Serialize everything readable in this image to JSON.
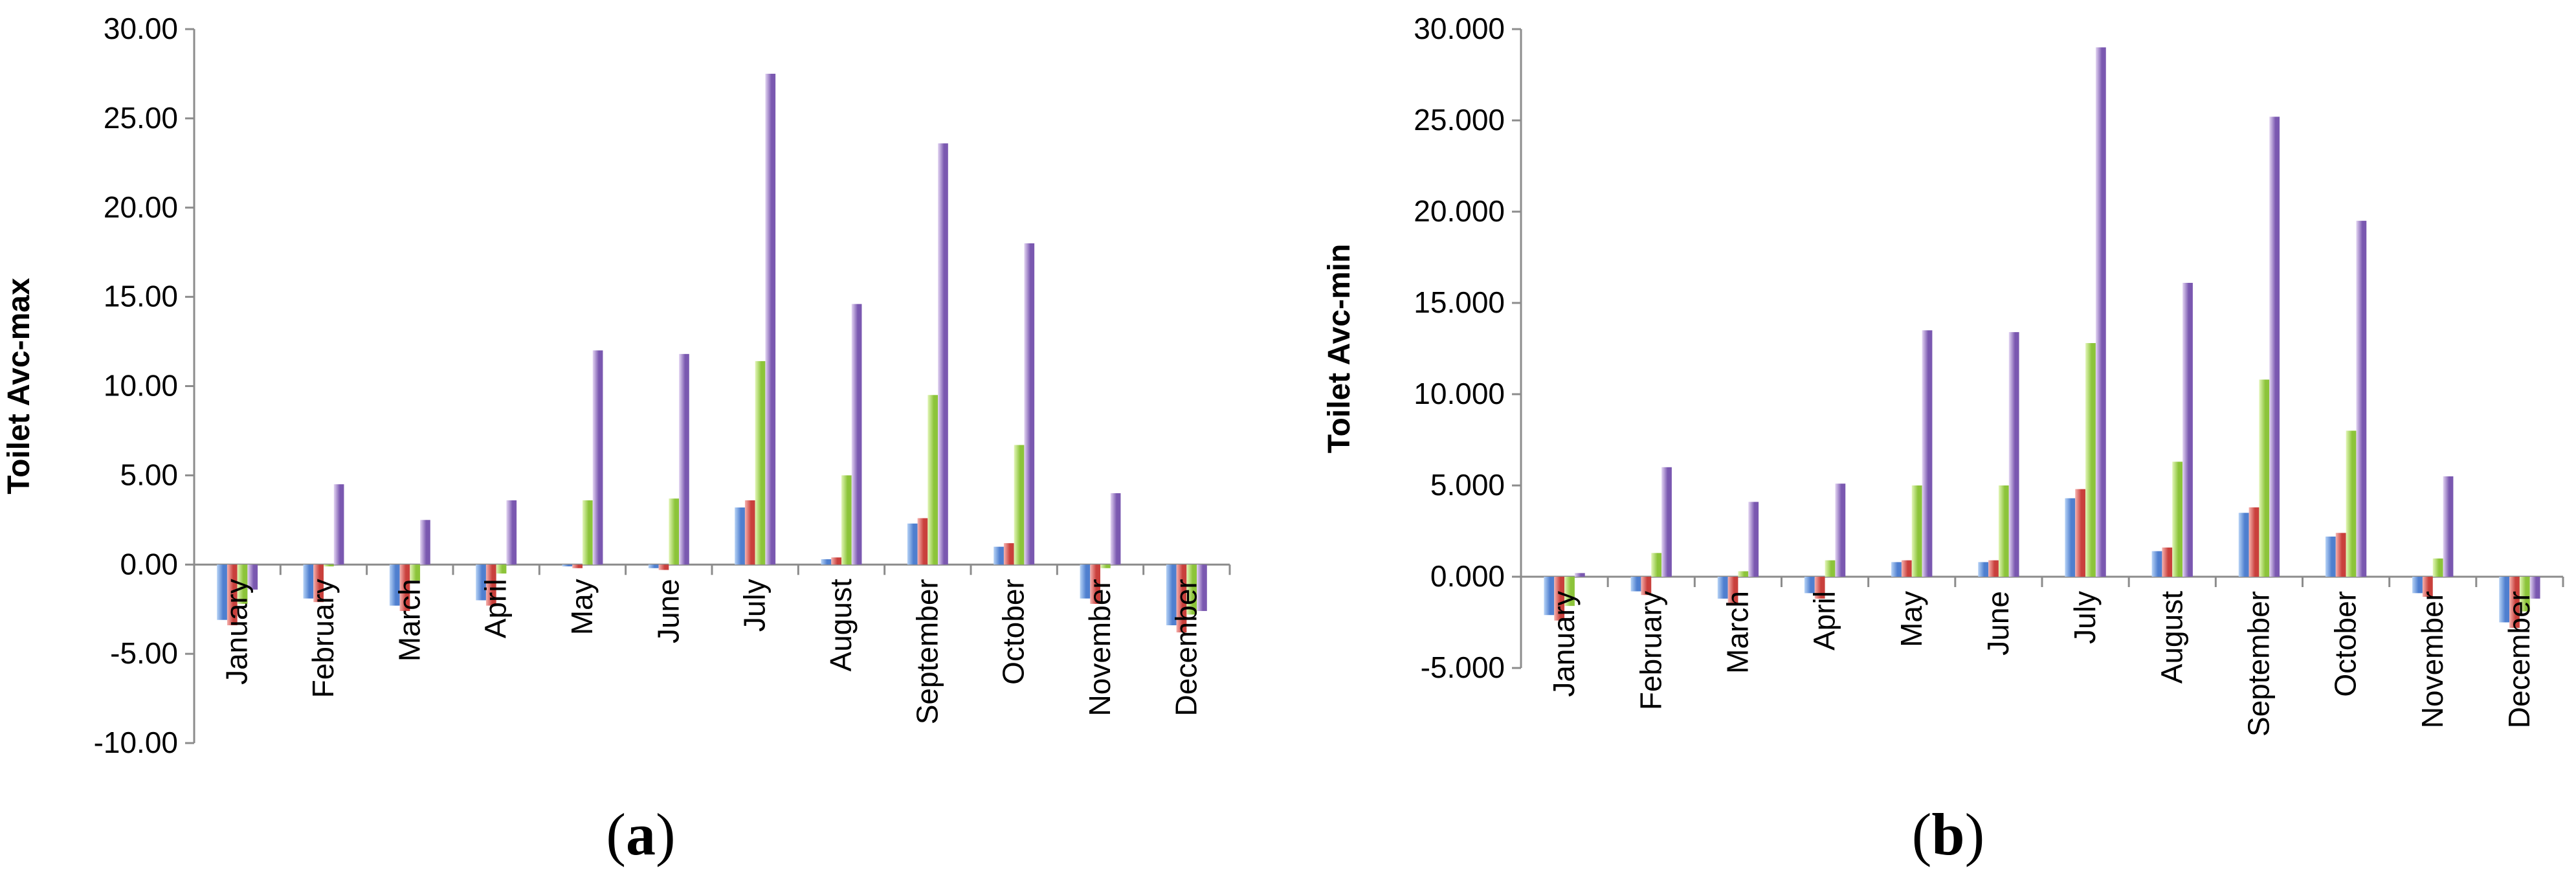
{
  "panels": [
    {
      "label": "(a)",
      "label_parts": [
        "(",
        "a",
        ")"
      ]
    },
    {
      "label": "(b)",
      "label_parts": [
        "(",
        "b",
        ")"
      ]
    }
  ],
  "chart_data": [
    {
      "type": "bar",
      "ylabel": "Toilet Avc-max",
      "ylim": [
        -10,
        30
      ],
      "yticks": [
        -10,
        -5,
        0,
        5,
        10,
        15,
        20,
        25,
        30
      ],
      "ytick_labels": [
        "-10.00",
        "-5.00",
        "0.00",
        "5.00",
        "10.00",
        "15.00",
        "20.00",
        "25.00",
        "30.00"
      ],
      "categories": [
        "January",
        "February",
        "March",
        "April",
        "May",
        "June",
        "July",
        "August",
        "September",
        "October",
        "November",
        "December"
      ],
      "grid": false,
      "series": [
        {
          "values": [
            -3.1,
            -1.9,
            -2.3,
            -2.0,
            -0.1,
            -0.2,
            3.2,
            0.3,
            2.3,
            1.0,
            -1.9,
            -3.4
          ]
        },
        {
          "values": [
            -3.4,
            -2.1,
            -2.6,
            -2.3,
            -0.2,
            -0.3,
            3.6,
            0.4,
            2.6,
            1.2,
            -2.2,
            -3.8
          ]
        },
        {
          "values": [
            -2.2,
            -0.1,
            -0.9,
            -0.5,
            3.6,
            3.7,
            11.4,
            5.0,
            9.5,
            6.7,
            -0.2,
            -2.8
          ]
        },
        {
          "values": [
            -1.4,
            4.5,
            2.5,
            3.6,
            12.0,
            11.8,
            27.5,
            14.6,
            23.6,
            18.0,
            4.0,
            -2.6
          ]
        }
      ]
    },
    {
      "type": "bar",
      "ylabel": "Toilet Avc-min",
      "ylim": [
        -5,
        30
      ],
      "yticks": [
        -5,
        0,
        5,
        10,
        15,
        20,
        25,
        30
      ],
      "ytick_labels": [
        "-5.000",
        "0.000",
        "5.000",
        "10.000",
        "15.000",
        "20.000",
        "25.000",
        "30.000"
      ],
      "categories": [
        "January",
        "February",
        "March",
        "April",
        "May",
        "June",
        "July",
        "August",
        "September",
        "October",
        "November",
        "December"
      ],
      "grid": false,
      "series": [
        {
          "values": [
            -2.1,
            -0.8,
            -1.2,
            -0.9,
            0.8,
            0.8,
            4.3,
            1.4,
            3.5,
            2.2,
            -0.9,
            -2.5
          ]
        },
        {
          "values": [
            -2.4,
            -1.0,
            -1.5,
            -1.2,
            0.9,
            0.9,
            4.8,
            1.6,
            3.8,
            2.4,
            -1.1,
            -2.8
          ]
        },
        {
          "values": [
            -1.6,
            1.3,
            0.3,
            0.9,
            5.0,
            5.0,
            12.8,
            6.3,
            10.8,
            8.0,
            1.0,
            -1.9
          ]
        },
        {
          "values": [
            0.2,
            6.0,
            4.1,
            5.1,
            13.5,
            13.4,
            29.0,
            16.1,
            25.2,
            19.5,
            5.5,
            -1.2
          ]
        }
      ]
    }
  ]
}
